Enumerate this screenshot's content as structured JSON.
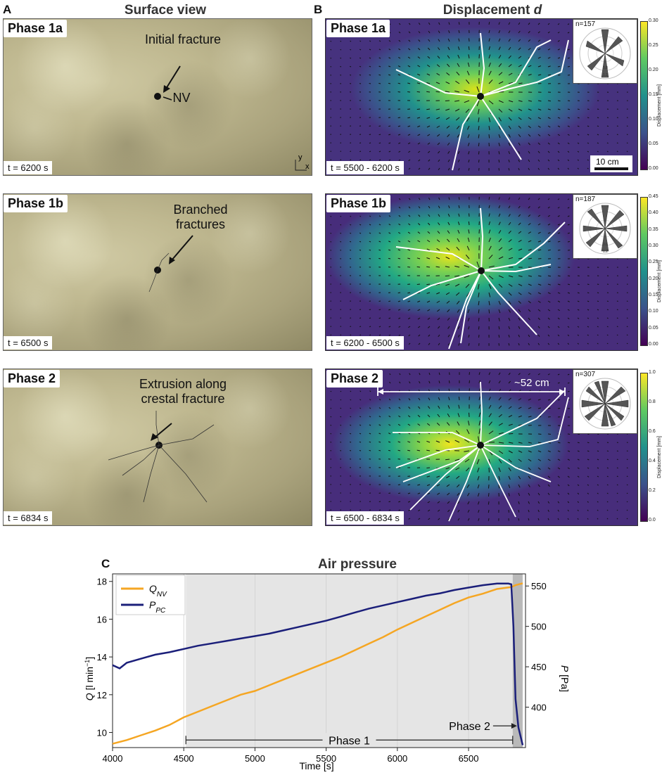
{
  "panels": {
    "A": {
      "letter": "A",
      "title": "Surface view"
    },
    "B": {
      "letter": "B",
      "title": "Displacement d"
    },
    "C": {
      "letter": "C"
    }
  },
  "rows": [
    {
      "phase": "Phase 1a",
      "surface_time": "t = 6200 s",
      "disp_time": "t = 5500 - 6200 s",
      "annotation": "Initial fracture",
      "n": "n=157",
      "cbar_ticks": [
        "0.30",
        "0.25",
        "0.20",
        "0.15",
        "0.10",
        "0.05",
        "0.00"
      ]
    },
    {
      "phase": "Phase 1b",
      "surface_time": "t = 6500 s",
      "disp_time": "t = 6200 - 6500 s",
      "annotation": "Branched fractures",
      "n": "n=187",
      "cbar_ticks": [
        "0.45",
        "0.40",
        "0.35",
        "0.30",
        "0.25",
        "0.20",
        "0.15",
        "0.10",
        "0.05",
        "0.00"
      ]
    },
    {
      "phase": "Phase 2",
      "surface_time": "t = 6834 s",
      "disp_time": "t = 6500 - 6834 s",
      "annotation": "Extrusion along crestal fracture",
      "n": "n=307",
      "cbar_ticks": [
        "1.0",
        "0.8",
        "0.6",
        "0.4",
        "0.2",
        "0.0"
      ]
    }
  ],
  "labels": {
    "nv": "NV",
    "axis_x": "x",
    "axis_y": "y",
    "scale_bar": "10 cm",
    "span": "~52 cm",
    "cbar_label": "Displacement [mm]",
    "rose_ticks": [
      "0.8",
      "1.2"
    ]
  },
  "chart_data": {
    "type": "line",
    "title": "Air pressure",
    "xlabel": "Time [s]",
    "ylabel": "Q [l min-1]",
    "y2label": "P [Pa]",
    "xlim": [
      4000,
      6900
    ],
    "ylim": [
      9.2,
      18.4
    ],
    "y2lim": [
      350,
      565
    ],
    "xticks": [
      4000,
      4500,
      5000,
      5500,
      6000,
      6500
    ],
    "yticks": [
      10,
      12,
      14,
      16,
      18
    ],
    "y2ticks": [
      400,
      450,
      500,
      550
    ],
    "grid": true,
    "legend_position": "top-left",
    "shaded_spans": [
      [
        4515,
        6810
      ],
      [
        6810,
        6880
      ]
    ],
    "annotations": [
      {
        "text": "Phase 1",
        "x_start": 4515,
        "x_end": 6810,
        "y": 9.6
      },
      {
        "text": "Phase 2",
        "x": 6850,
        "y": 10.2
      }
    ],
    "series": [
      {
        "name": "Q_NV",
        "axis": "left",
        "color": "#f5a623",
        "x": [
          4000,
          4100,
          4200,
          4300,
          4400,
          4500,
          4600,
          4700,
          4800,
          4900,
          5000,
          5100,
          5200,
          5300,
          5400,
          5500,
          5600,
          5700,
          5800,
          5900,
          6000,
          6100,
          6200,
          6300,
          6400,
          6500,
          6600,
          6700,
          6800,
          6830,
          6880
        ],
        "y": [
          9.4,
          9.6,
          9.85,
          10.1,
          10.4,
          10.8,
          11.1,
          11.4,
          11.7,
          12.0,
          12.2,
          12.5,
          12.8,
          13.1,
          13.4,
          13.7,
          14.0,
          14.35,
          14.7,
          15.05,
          15.45,
          15.8,
          16.15,
          16.5,
          16.85,
          17.15,
          17.35,
          17.6,
          17.7,
          17.8,
          17.9
        ]
      },
      {
        "name": "P_PC",
        "axis": "right",
        "color": "#1b1f7a",
        "x": [
          4000,
          4050,
          4100,
          4200,
          4300,
          4400,
          4500,
          4600,
          4700,
          4800,
          4900,
          5000,
          5100,
          5200,
          5300,
          5400,
          5500,
          5600,
          5700,
          5800,
          5900,
          6000,
          6100,
          6200,
          6300,
          6400,
          6500,
          6600,
          6700,
          6780,
          6800,
          6815,
          6830,
          6850,
          6880
        ],
        "y": [
          452,
          448,
          455,
          460,
          465,
          468,
          472,
          476,
          479,
          482,
          485,
          488,
          491,
          495,
          499,
          503,
          507,
          512,
          517,
          522,
          526,
          530,
          534,
          538,
          541,
          545,
          548,
          551,
          553,
          553,
          552,
          500,
          410,
          375,
          353
        ]
      }
    ]
  }
}
